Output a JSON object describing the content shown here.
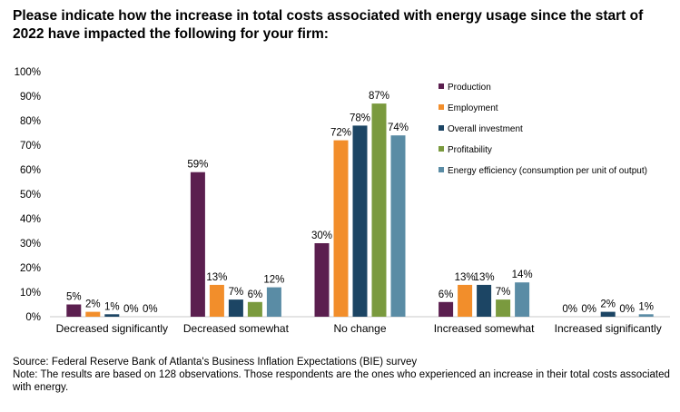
{
  "title": "Please indicate how the increase in total costs associated with energy usage since the start of 2022 have impacted the following for your firm:",
  "source": "Source: Federal Reserve Bank of Atlanta's Business Inflation Expectations (BIE) survey",
  "note": "Note: The results are based on 128 observations. Those respondents are the ones who experienced an increase in their total costs associated with energy.",
  "chart_data": {
    "type": "bar",
    "title": "Please indicate how the increase in total costs associated with energy usage since the start of 2022 have impacted the following for your firm:",
    "categories": [
      "Decreased significantly",
      "Decreased somewhat",
      "No change",
      "Increased somewhat",
      "Increased significantly"
    ],
    "ylim": [
      0,
      100
    ],
    "yticks": [
      "0%",
      "10%",
      "20%",
      "30%",
      "40%",
      "50%",
      "60%",
      "70%",
      "80%",
      "90%",
      "100%"
    ],
    "legend_position": "top-right",
    "series": [
      {
        "name": "Production",
        "color": "#5b1f4f",
        "values": [
          5,
          59,
          30,
          6,
          0
        ],
        "labels": [
          "5%",
          "59%",
          "30%",
          "6%",
          "0%"
        ]
      },
      {
        "name": "Employment",
        "color": "#f28e2b",
        "values": [
          2,
          13,
          72,
          13,
          0
        ],
        "labels": [
          "2%",
          "13%",
          "72%",
          "13%",
          "0%"
        ]
      },
      {
        "name": "Overall investment",
        "color": "#1c4564",
        "values": [
          1,
          7,
          78,
          13,
          2
        ],
        "labels": [
          "1%",
          "7%",
          "78%",
          "13%",
          "2%"
        ]
      },
      {
        "name": "Profitability",
        "color": "#7a9a3e",
        "values": [
          0,
          6,
          87,
          7,
          0
        ],
        "labels": [
          "0%",
          "6%",
          "87%",
          "7%",
          "0%"
        ]
      },
      {
        "name": "Energy efficiency (consumption per unit of output)",
        "color": "#5a8ca5",
        "values": [
          0,
          12,
          74,
          14,
          1
        ],
        "labels": [
          "0%",
          "12%",
          "74%",
          "14%",
          "1%"
        ]
      }
    ]
  }
}
